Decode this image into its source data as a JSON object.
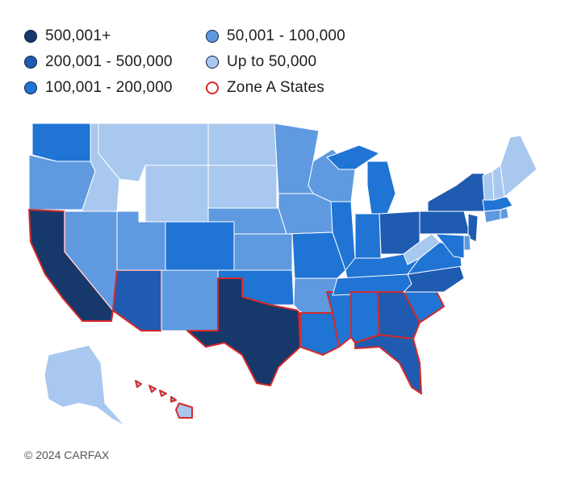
{
  "legend": {
    "items": [
      {
        "label": "500,001+",
        "color": "#16386b"
      },
      {
        "label": "200,001 - 500,000",
        "color": "#1f5bb0"
      },
      {
        "label": "100,001 - 200,000",
        "color": "#1f74d4"
      },
      {
        "label": "50,001 - 100,000",
        "color": "#5f9ae0"
      },
      {
        "label": "Up to 50,000",
        "color": "#a8c8ef"
      },
      {
        "label": "Zone A States",
        "color": "#ffffff",
        "outline": "#d42a2a"
      }
    ]
  },
  "map": {
    "zone_outline": "#d42a2a",
    "states": [
      {
        "id": "WA",
        "tier": 2
      },
      {
        "id": "OR",
        "tier": 3
      },
      {
        "id": "CA",
        "tier": 0,
        "zone": true
      },
      {
        "id": "ID",
        "tier": 4
      },
      {
        "id": "NV",
        "tier": 3
      },
      {
        "id": "AZ",
        "tier": 1,
        "zone": true
      },
      {
        "id": "MT",
        "tier": 4
      },
      {
        "id": "WY",
        "tier": 4
      },
      {
        "id": "UT",
        "tier": 3
      },
      {
        "id": "CO",
        "tier": 2
      },
      {
        "id": "NM",
        "tier": 3
      },
      {
        "id": "ND",
        "tier": 4
      },
      {
        "id": "SD",
        "tier": 4
      },
      {
        "id": "NE",
        "tier": 3
      },
      {
        "id": "KS",
        "tier": 3
      },
      {
        "id": "OK",
        "tier": 2
      },
      {
        "id": "TX",
        "tier": 0,
        "zone": true
      },
      {
        "id": "MN",
        "tier": 3
      },
      {
        "id": "IA",
        "tier": 3
      },
      {
        "id": "MO",
        "tier": 2
      },
      {
        "id": "AR",
        "tier": 3
      },
      {
        "id": "LA",
        "tier": 2,
        "zone": true
      },
      {
        "id": "WI",
        "tier": 3
      },
      {
        "id": "IL",
        "tier": 2
      },
      {
        "id": "MS",
        "tier": 2,
        "zone": true
      },
      {
        "id": "MI",
        "tier": 2
      },
      {
        "id": "IN",
        "tier": 2
      },
      {
        "id": "OH",
        "tier": 1
      },
      {
        "id": "KY",
        "tier": 2
      },
      {
        "id": "TN",
        "tier": 2
      },
      {
        "id": "AL",
        "tier": 2,
        "zone": true
      },
      {
        "id": "GA",
        "tier": 1,
        "zone": true
      },
      {
        "id": "FL",
        "tier": 1,
        "zone": true
      },
      {
        "id": "SC",
        "tier": 2,
        "zone": true
      },
      {
        "id": "NC",
        "tier": 1
      },
      {
        "id": "VA",
        "tier": 2
      },
      {
        "id": "WV",
        "tier": 4
      },
      {
        "id": "PA",
        "tier": 1
      },
      {
        "id": "NY",
        "tier": 1
      },
      {
        "id": "NJ",
        "tier": 1
      },
      {
        "id": "DE",
        "tier": 3
      },
      {
        "id": "MD",
        "tier": 2
      },
      {
        "id": "CT",
        "tier": 3
      },
      {
        "id": "RI",
        "tier": 3
      },
      {
        "id": "MA",
        "tier": 2
      },
      {
        "id": "VT",
        "tier": 4
      },
      {
        "id": "NH",
        "tier": 4
      },
      {
        "id": "ME",
        "tier": 4
      },
      {
        "id": "AK",
        "tier": 4
      },
      {
        "id": "HI",
        "tier": 4,
        "zone": true
      }
    ]
  },
  "footer": {
    "copyright": "© 2024 CARFAX"
  }
}
